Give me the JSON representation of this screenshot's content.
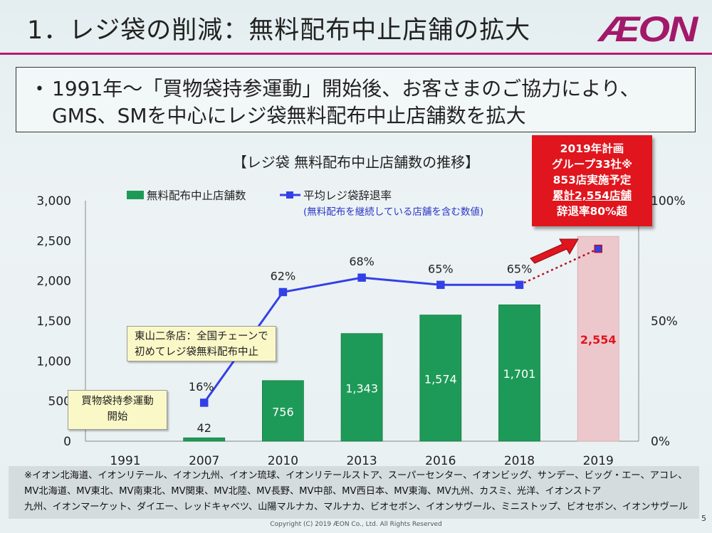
{
  "slide": {
    "title": "1．レジ袋の削減：無料配布中止店舗の拡大",
    "logo": "ÆON",
    "accent_color": "#b31c73",
    "bullet": "•",
    "summary_line1": "1991年～「買物袋持参運動」開始後、お客さまのご協力により、",
    "summary_line2": "GMS、SMを中心にレジ袋無料配布中止店舗数を拡大",
    "chart_title": "【レジ袋 無料配布中止店舗数の推移】",
    "plan_box": {
      "line1": "2019年計画",
      "line2": "グループ33社※",
      "line3": "853店実施予定",
      "line4": "累計2,554店舗",
      "line5": "辞退率80%超",
      "color": "#e0151d"
    },
    "callout_2007": {
      "line1": "東山二条店：全国チェーンで",
      "line2": "初めてレジ袋無料配布中止"
    },
    "callout_1991": {
      "line1": "買物袋持参運動",
      "line2": "開始"
    },
    "footer_lines": [
      "※イオン北海道、イオンリテール、イオン九州、イオン琉球、イオンリテールストア、スーパーセンター、イオンビッグ、サンデー、ビッグ・エー、アコレ、",
      "MV北海道、MV東北、MV南東北、MV関東、MV北陸、MV長野、MV中部、MV西日本、MV東海、MV九州、カスミ、光洋、イオンストア",
      "九州、イオンマーケット、ダイエー、レッドキャベツ、山陽マルナカ、マルナカ、ビオセボン、イオンサヴール、ミニストップ、ビオセボン、イオンサヴール"
    ],
    "copyright": "Copyright (C) 2019 ÆON Co., Ltd.  All Rights Reserved",
    "page_number": "5"
  },
  "chart_data": {
    "type": "bar",
    "categories": [
      "1991",
      "2007",
      "2010",
      "2013",
      "2016",
      "2018",
      "2019"
    ],
    "series": [
      {
        "name": "無料配布中止店舗数",
        "type": "bar",
        "axis": "left",
        "values": [
          0,
          42,
          756,
          1343,
          1574,
          1701,
          2554
        ],
        "labels": [
          "",
          "42",
          "756",
          "1,343",
          "1,574",
          "1,701",
          "2,554"
        ],
        "color": "#1e9a58",
        "plan_color": "#ecc8cc"
      },
      {
        "name": "平均レジ袋辞退率",
        "type": "line",
        "axis": "right",
        "values": [
          null,
          16,
          62,
          68,
          65,
          65,
          80
        ],
        "labels": [
          "",
          "16%",
          "62%",
          "68%",
          "65%",
          "65%",
          ""
        ],
        "color": "#3340e6"
      }
    ],
    "legend_note": "(無料配布を継続している店舗を含む数値)",
    "y_left": {
      "ylim": [
        0,
        3000
      ],
      "ticks": [
        "0",
        "500",
        "1,000",
        "1,500",
        "2,000",
        "2,500",
        "3,000"
      ]
    },
    "y_right": {
      "ylim": [
        0,
        100
      ],
      "ticks": [
        "0%",
        "50%",
        "100%"
      ]
    },
    "plan_value_color": "#e0151d",
    "legend_position": "top",
    "grid": false
  }
}
